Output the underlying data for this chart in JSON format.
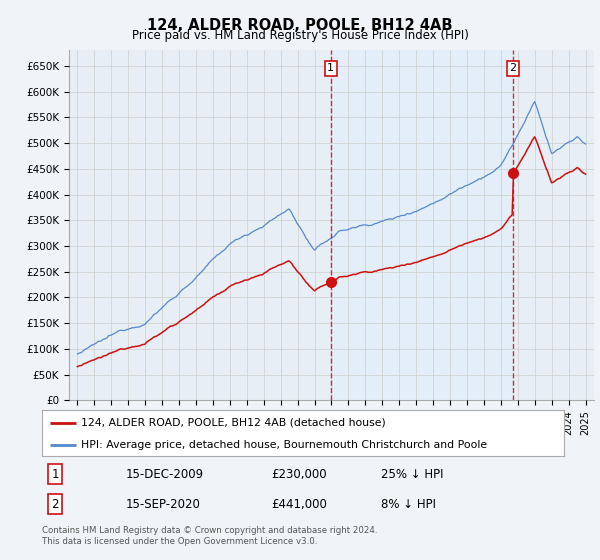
{
  "title": "124, ALDER ROAD, POOLE, BH12 4AB",
  "subtitle": "Price paid vs. HM Land Registry's House Price Index (HPI)",
  "ylim": [
    0,
    680000
  ],
  "yticks": [
    0,
    50000,
    100000,
    150000,
    200000,
    250000,
    300000,
    350000,
    400000,
    450000,
    500000,
    550000,
    600000,
    650000
  ],
  "hpi_color": "#5588cc",
  "price_color": "#cc1111",
  "shade_color": "#ddeeff",
  "grid_color": "#cccccc",
  "bg_color": "#f0f4f8",
  "plot_bg": "#e8eef5",
  "transaction1": {
    "date": "15-DEC-2009",
    "price": 230000,
    "label": "25% ↓ HPI",
    "year": 2009.96
  },
  "transaction2": {
    "date": "15-SEP-2020",
    "price": 441000,
    "label": "8% ↓ HPI",
    "year": 2020.71
  },
  "legend_line1": "124, ALDER ROAD, POOLE, BH12 4AB (detached house)",
  "legend_line2": "HPI: Average price, detached house, Bournemouth Christchurch and Poole",
  "footer": "Contains HM Land Registry data © Crown copyright and database right 2024.\nThis data is licensed under the Open Government Licence v3.0.",
  "xmin": 1995.0,
  "xmax": 2025.5
}
